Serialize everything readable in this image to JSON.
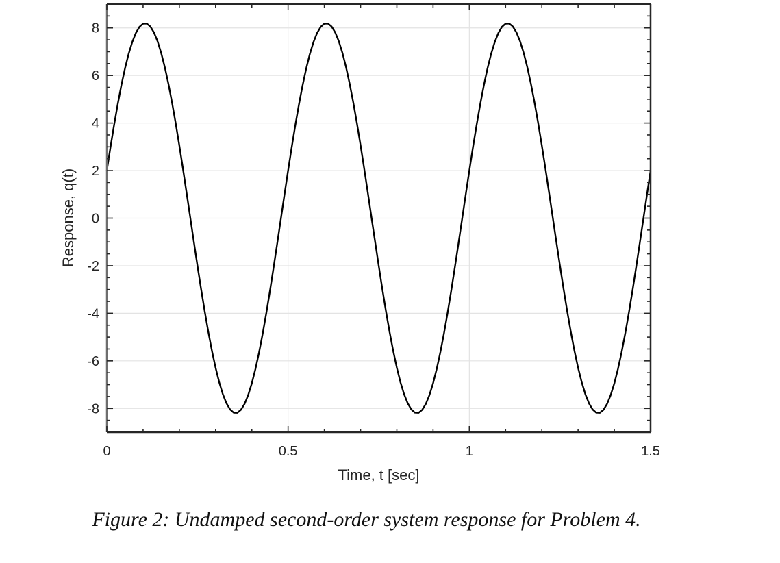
{
  "chart_data": {
    "type": "line",
    "title": "",
    "xlabel": "Time, t [sec]",
    "ylabel": "Response, q(t)",
    "xlim": [
      0,
      1.5
    ],
    "ylim": [
      -9,
      9
    ],
    "xticks": [
      0,
      0.5,
      1,
      1.5
    ],
    "xtick_labels": [
      "0",
      "0.5",
      "1",
      "1.5"
    ],
    "yticks": [
      -8,
      -6,
      -4,
      -2,
      0,
      2,
      4,
      6,
      8
    ],
    "ytick_labels": [
      "-8",
      "-6",
      "-4",
      "-2",
      "0",
      "2",
      "4",
      "6",
      "8"
    ],
    "grid": true,
    "legend": null,
    "series": [
      {
        "name": "q(t)",
        "color": "#000000",
        "description": "Undamped sinusoid, period 0.5 s, amplitude ~8.2, q(0)=2",
        "x": [
          0,
          0.05,
          0.1,
          0.106,
          0.15,
          0.2,
          0.25,
          0.3,
          0.356,
          0.4,
          0.45,
          0.5,
          0.55,
          0.606,
          0.65,
          0.7,
          0.75,
          0.8,
          0.856,
          0.9,
          0.95,
          1.0,
          1.05,
          1.106,
          1.15,
          1.2,
          1.25,
          1.3,
          1.356,
          1.4,
          1.45,
          1.5
        ],
        "values": [
          2,
          6.3,
          8.18,
          8.2,
          6.9,
          2.9,
          -2.0,
          -6.3,
          -8.2,
          -6.9,
          -2.9,
          2,
          6.3,
          8.2,
          6.9,
          2.9,
          -2.0,
          -6.3,
          -8.2,
          -6.9,
          -2.9,
          2,
          6.3,
          8.2,
          6.9,
          2.9,
          -2.0,
          -6.3,
          -8.2,
          -6.9,
          -2.9,
          2
        ]
      }
    ],
    "model": {
      "amplitude": 8.2,
      "period": 0.5,
      "initial_value": 2,
      "cos_coef": 2,
      "sin_coef": 7.95,
      "omega": 12.566
    }
  },
  "caption": "Figure 2: Undamped second-order system response for Problem 4."
}
